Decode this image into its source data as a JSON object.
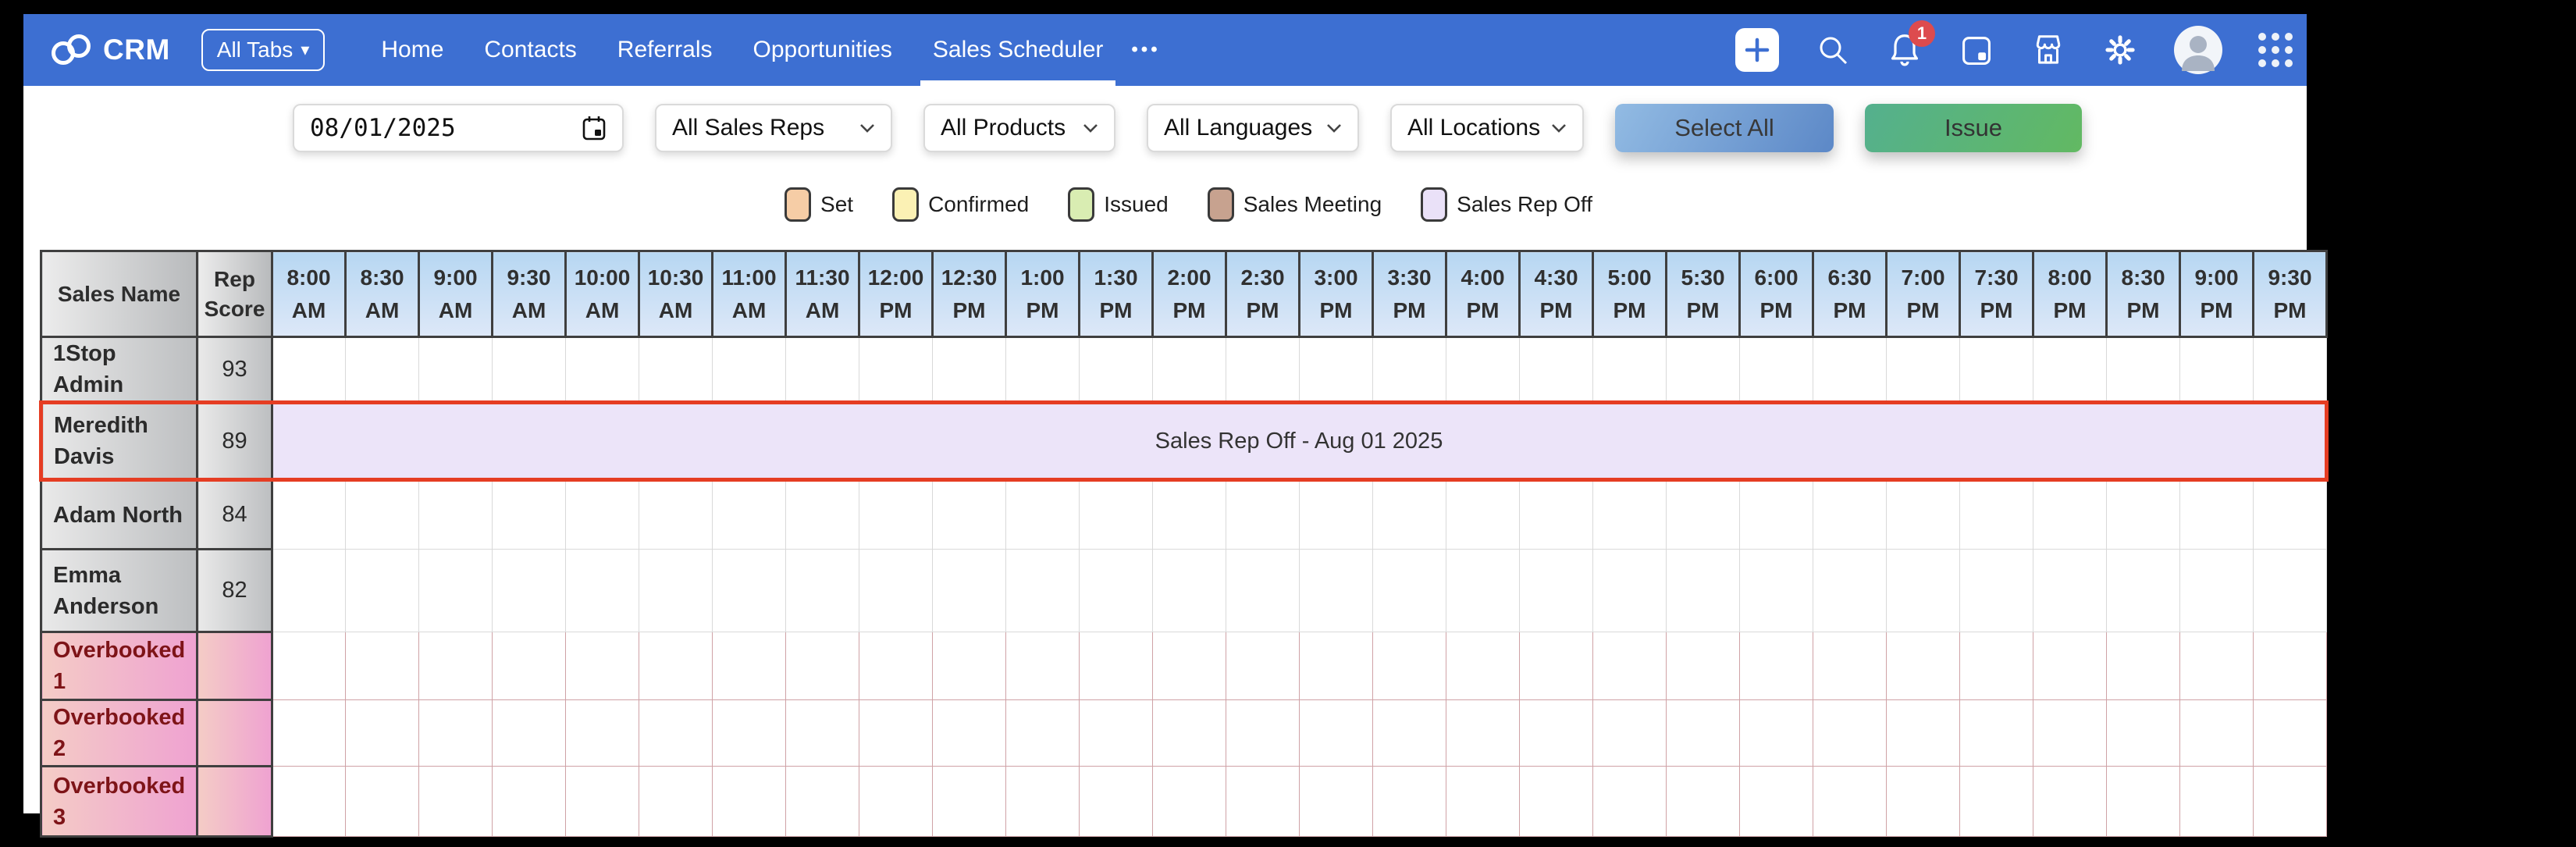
{
  "nav": {
    "brand": "CRM",
    "all_tabs_label": "All Tabs",
    "items": [
      "Home",
      "Contacts",
      "Referrals",
      "Opportunities",
      "Sales Scheduler"
    ],
    "active": "Sales Scheduler",
    "more_label": "•••",
    "notification_count": "1",
    "icons": [
      "add-record-icon",
      "search-icon",
      "notifications-bell-icon",
      "calendar-icon",
      "marketplace-icon",
      "settings-gear-icon",
      "user-avatar",
      "app-grid-icon"
    ]
  },
  "filters": {
    "date_value": "08/01/2025",
    "sales_reps": "All Sales Reps",
    "products": "All Products",
    "languages": "All Languages",
    "locations": "All Locations",
    "select_all_label": "Select All",
    "issue_label": "Issue"
  },
  "legend": {
    "items": [
      {
        "label": "Set",
        "color": "#f6cda6"
      },
      {
        "label": "Confirmed",
        "color": "#fbf1b4"
      },
      {
        "label": "Issued",
        "color": "#d9edb2"
      },
      {
        "label": "Sales Meeting",
        "color": "#c7a28f"
      },
      {
        "label": "Sales Rep Off",
        "color": "#eae1f8"
      }
    ]
  },
  "schedule": {
    "columns": [
      "Sales Name",
      "Rep Score"
    ],
    "time_slots": [
      "8:00 AM",
      "8:30 AM",
      "9:00 AM",
      "9:30 AM",
      "10:00 AM",
      "10:30 AM",
      "11:00 AM",
      "11:30 AM",
      "12:00 PM",
      "12:30 PM",
      "1:00 PM",
      "1:30 PM",
      "2:00 PM",
      "2:30 PM",
      "3:00 PM",
      "3:30 PM",
      "4:00 PM",
      "4:30 PM",
      "5:00 PM",
      "5:30 PM",
      "6:00 PM",
      "6:30 PM",
      "7:00 PM",
      "7:30 PM",
      "8:00 PM",
      "8:30 PM",
      "9:00 PM",
      "9:30 PM"
    ],
    "rows": [
      {
        "name": "1Stop Admin",
        "score": "93",
        "type": "normal"
      },
      {
        "name": "Meredith Davis",
        "score": "89",
        "type": "rep-off",
        "banner": "Sales Rep Off - Aug 01 2025"
      },
      {
        "name": "Adam North",
        "score": "84",
        "type": "normal"
      },
      {
        "name": "Emma Anderson",
        "score": "82",
        "type": "normal"
      },
      {
        "name": "Overbooked 1",
        "score": "",
        "type": "overbooked"
      },
      {
        "name": "Overbooked 2",
        "score": "",
        "type": "overbooked"
      },
      {
        "name": "Overbooked 3",
        "score": "",
        "type": "overbooked"
      }
    ]
  },
  "colors": {
    "nav_blue": "#3d6fd2",
    "badge_red": "#dd4b4e",
    "select_from": "#92bbe3",
    "select_to": "#5c88c7",
    "issue_from": "#54b08e",
    "issue_to": "#62b962",
    "time_from": "#b7d7f2",
    "time_to": "#dde8f8",
    "table_border": "#3f3f3f",
    "grid_line": "#d9d9d9",
    "ob_from": "#f4ccc6",
    "ob_to": "#efa2d1",
    "ob_text": "#7e1418",
    "ob_grid": "#cfa2a6",
    "repoff_fill": "#ece4f9",
    "repoff_border": "#e53d23"
  }
}
